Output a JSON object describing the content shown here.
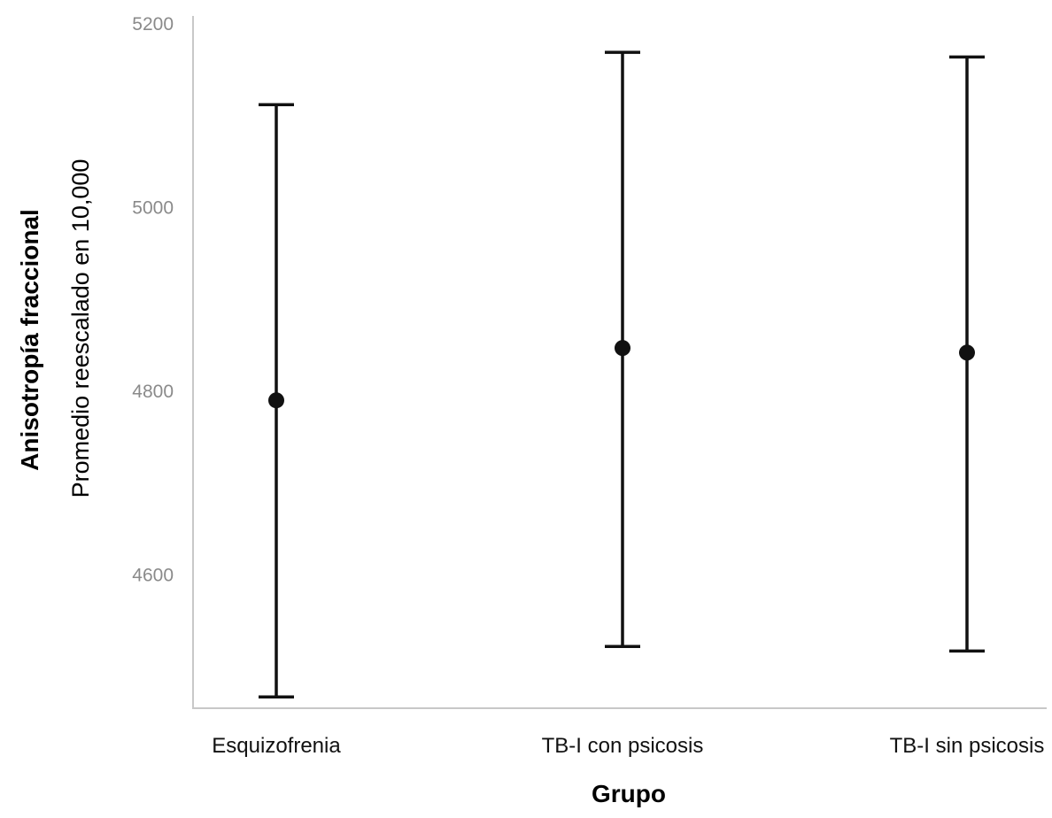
{
  "chart_data": {
    "type": "errorbar",
    "xlabel": "Grupo",
    "ylabel": "Anisotropía fraccional",
    "ylabel_sub": "Promedio reescalado en 10,000",
    "ylim": [
      4420,
      5200
    ],
    "yticks": [
      4600,
      4800,
      5000,
      5200
    ],
    "categories": [
      "Esquizofrenia",
      "TB-I con psicosis",
      "TB-I sin psicosis"
    ],
    "means": [
      4790,
      4847,
      4842
    ],
    "lower": [
      4467,
      4522,
      4517
    ],
    "upper": [
      5112,
      5169,
      5164
    ],
    "grid": false,
    "legend": "none",
    "colors": {
      "marks": "#111111",
      "axis": "#c8c8c8",
      "tick_labels": "#8a8a8a"
    }
  }
}
